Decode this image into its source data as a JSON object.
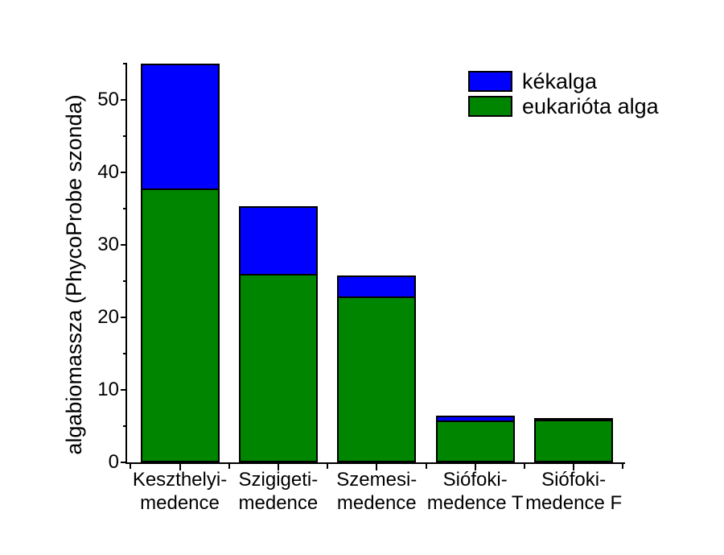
{
  "chart_data": {
    "type": "bar",
    "stacked": true,
    "title": "",
    "xlabel": "",
    "ylabel": "algabiomassza (PhycoProbe szonda)",
    "ylim": [
      0,
      55.1
    ],
    "yticks_major": [
      0,
      10,
      20,
      30,
      40,
      50
    ],
    "yticks_minor": [
      5,
      15,
      25,
      35,
      45,
      55
    ],
    "grid": false,
    "legend_position": "top-right",
    "categories": [
      [
        "Keszthelyi-",
        "medence"
      ],
      [
        "Szigigeti-",
        "medence"
      ],
      [
        "Szemesi-",
        "medence"
      ],
      [
        "Siófoki-",
        "medence T"
      ],
      [
        "Siófoki-",
        "medence F"
      ]
    ],
    "series": [
      {
        "name": "eukarióta alga",
        "color": "#008500",
        "values": [
          37.8,
          26.0,
          22.9,
          5.8,
          5.9
        ]
      },
      {
        "name": "kékalga",
        "color": "#0000ff",
        "values": [
          17.2,
          9.3,
          2.9,
          0.6,
          0.2
        ]
      }
    ],
    "totals": [
      55.0,
      35.3,
      25.8,
      6.4,
      6.1
    ],
    "legend": [
      {
        "label": "kékalga",
        "color": "#0000ff"
      },
      {
        "label": "eukarióta alga",
        "color": "#008500"
      }
    ],
    "axis_color": "#000000",
    "bar_outline_color": "#000000",
    "background_color": "#ffffff"
  }
}
